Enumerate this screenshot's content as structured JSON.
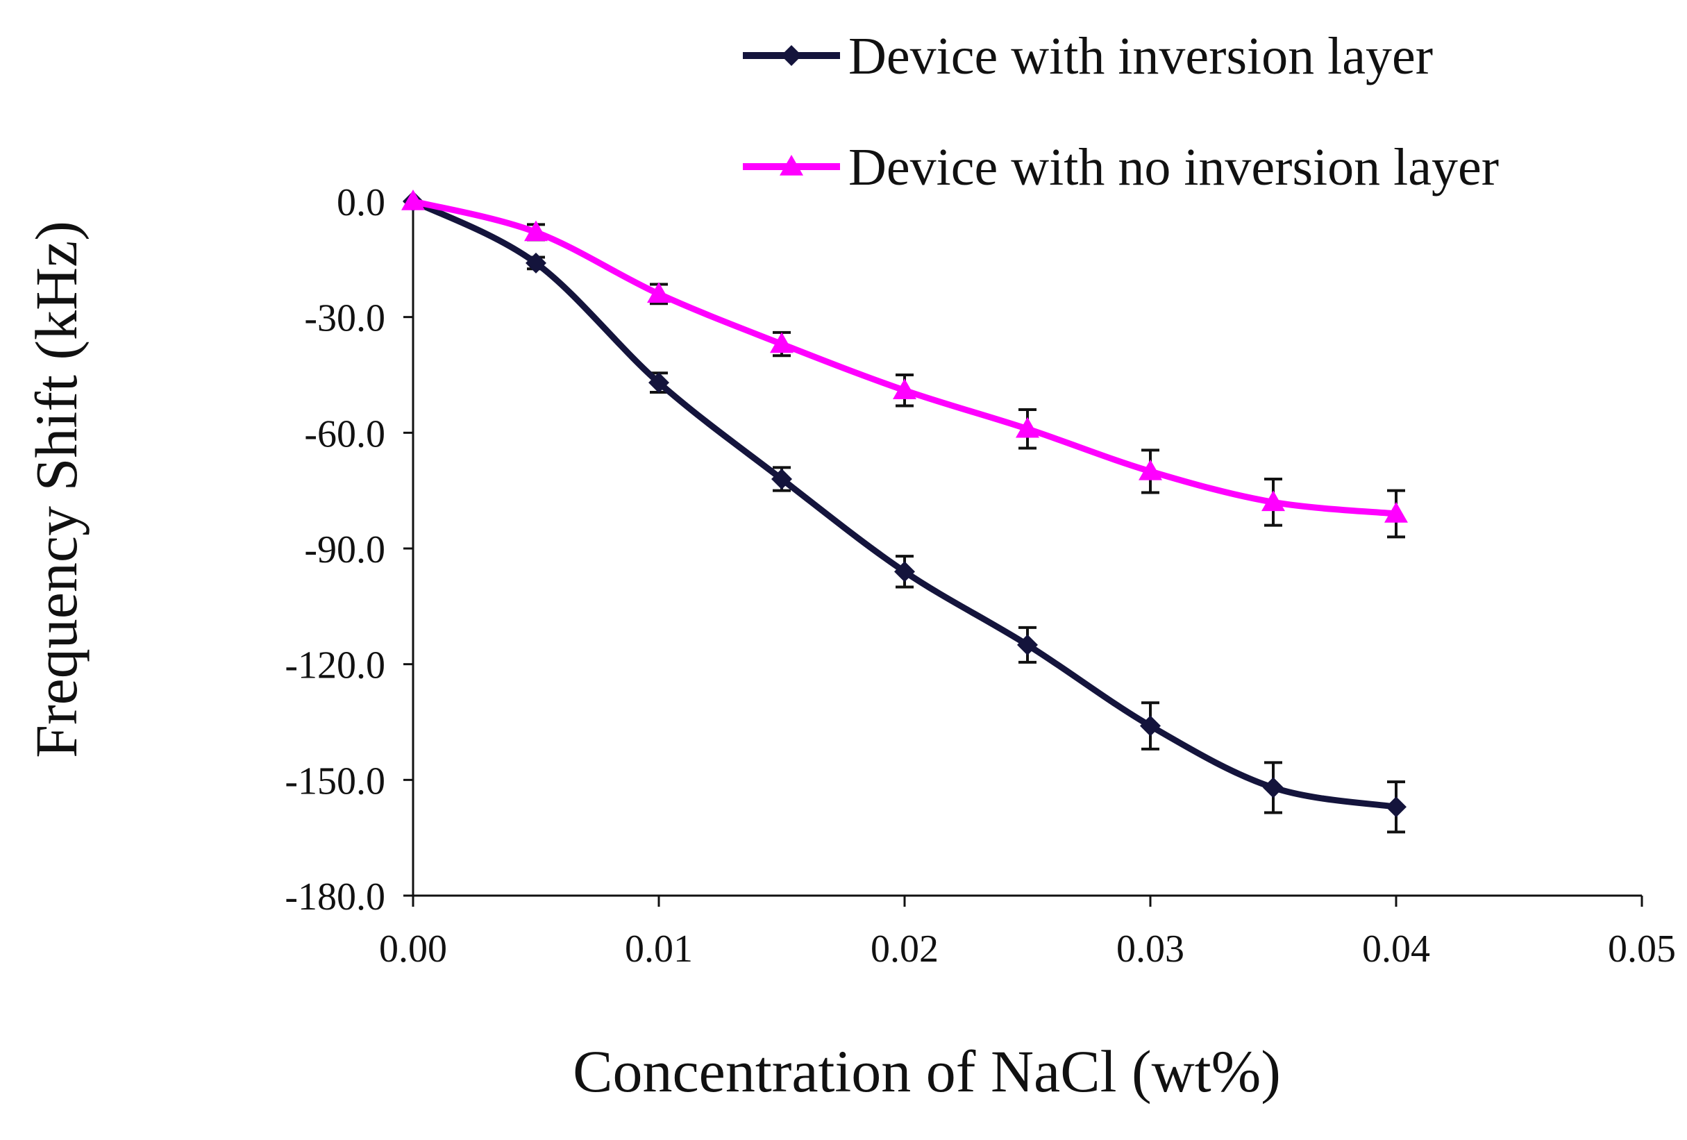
{
  "chart_data": {
    "type": "line",
    "title": "",
    "xlabel": "Concentration of NaCl (wt%)",
    "ylabel": "Frequency Shift (kHz)",
    "xlim": [
      0,
      0.05
    ],
    "ylim": [
      -180,
      0
    ],
    "x_ticks": [
      0,
      0.01,
      0.02,
      0.03,
      0.04,
      0.05
    ],
    "x_tick_labels": [
      "0.00",
      "0.01",
      "0.02",
      "0.03",
      "0.04",
      "0.05"
    ],
    "y_ticks": [
      0,
      -30,
      -60,
      -90,
      -120,
      -150,
      -180
    ],
    "y_tick_labels": [
      "0.0",
      "-30.0",
      "-60.0",
      "-90.0",
      "-120.0",
      "-150.0",
      "-180.0"
    ],
    "grid": false,
    "legend_position": "top-right",
    "series": [
      {
        "name": "Device with inversion layer",
        "color": "#14143c",
        "marker": "diamond",
        "x": [
          0,
          0.005,
          0.01,
          0.015,
          0.02,
          0.025,
          0.03,
          0.035,
          0.04
        ],
        "y": [
          0,
          -16,
          -47,
          -72,
          -96,
          -115,
          -136,
          -152,
          -157
        ],
        "error": [
          0,
          1.5,
          2.5,
          3,
          4,
          4.5,
          6,
          6.5,
          6.5
        ]
      },
      {
        "name": "Device with no inversion layer",
        "color": "#ff00ff",
        "marker": "triangle",
        "x": [
          0,
          0.005,
          0.01,
          0.015,
          0.02,
          0.025,
          0.03,
          0.035,
          0.04
        ],
        "y": [
          0,
          -8,
          -24,
          -37,
          -49,
          -59,
          -70,
          -78,
          -81
        ],
        "error": [
          0,
          2,
          2.5,
          3,
          4,
          5,
          5.5,
          6,
          6
        ]
      }
    ]
  }
}
